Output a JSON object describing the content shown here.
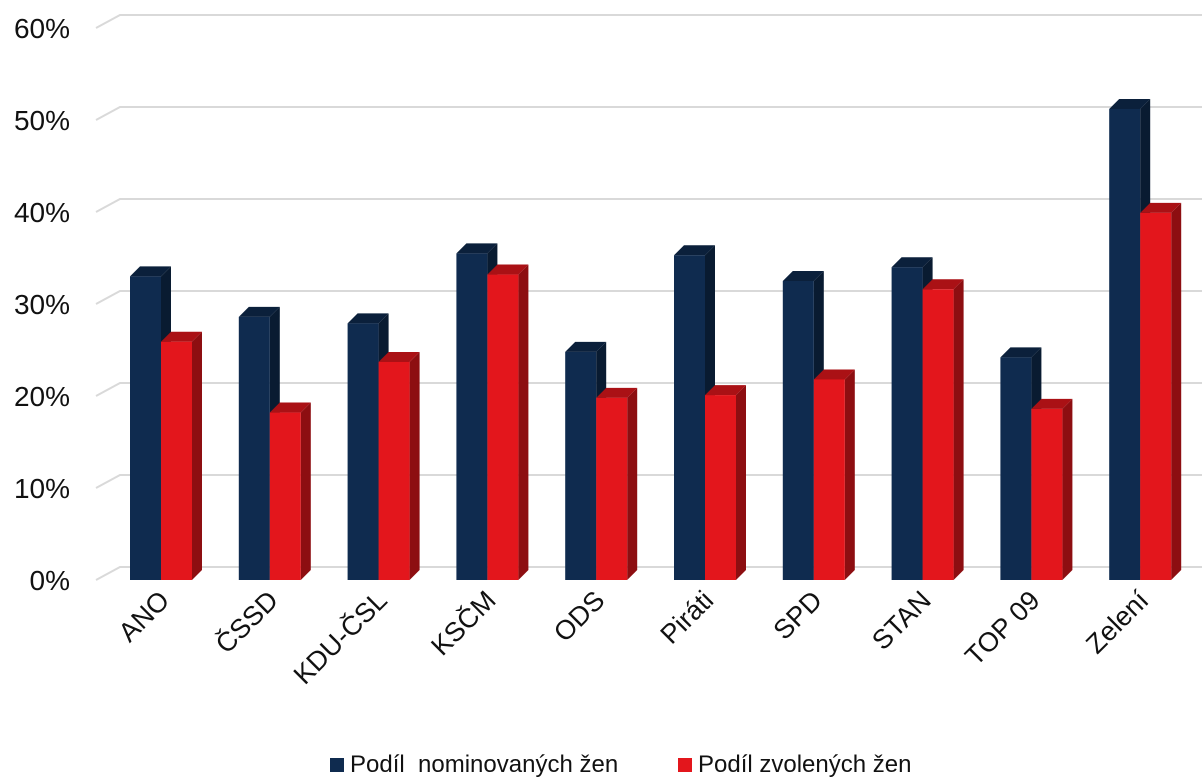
{
  "chart_data": {
    "type": "bar",
    "categories": [
      "ANO",
      "ČSSD",
      "KDU-ČSL",
      "KSČM",
      "ODS",
      "Piráti",
      "SPD",
      "STAN",
      "TOP 09",
      "Zelení"
    ],
    "series": [
      {
        "name": "Podíl  nominovaných žen",
        "color": "#0f2b4f",
        "values": [
          33.0,
          28.6,
          27.9,
          35.5,
          24.8,
          35.3,
          32.5,
          34.0,
          24.2,
          51.2
        ]
      },
      {
        "name": "Podíl zvolených žen",
        "color": "#e3161c",
        "values": [
          25.9,
          18.2,
          23.7,
          33.2,
          19.8,
          20.1,
          21.8,
          31.6,
          18.6,
          39.9
        ]
      }
    ],
    "y_ticks": [
      "0%",
      "10%",
      "20%",
      "30%",
      "40%",
      "50%",
      "60%"
    ],
    "ylim": [
      0,
      60
    ],
    "grid": true,
    "legend_position": "bottom",
    "style": "3d-bar"
  }
}
